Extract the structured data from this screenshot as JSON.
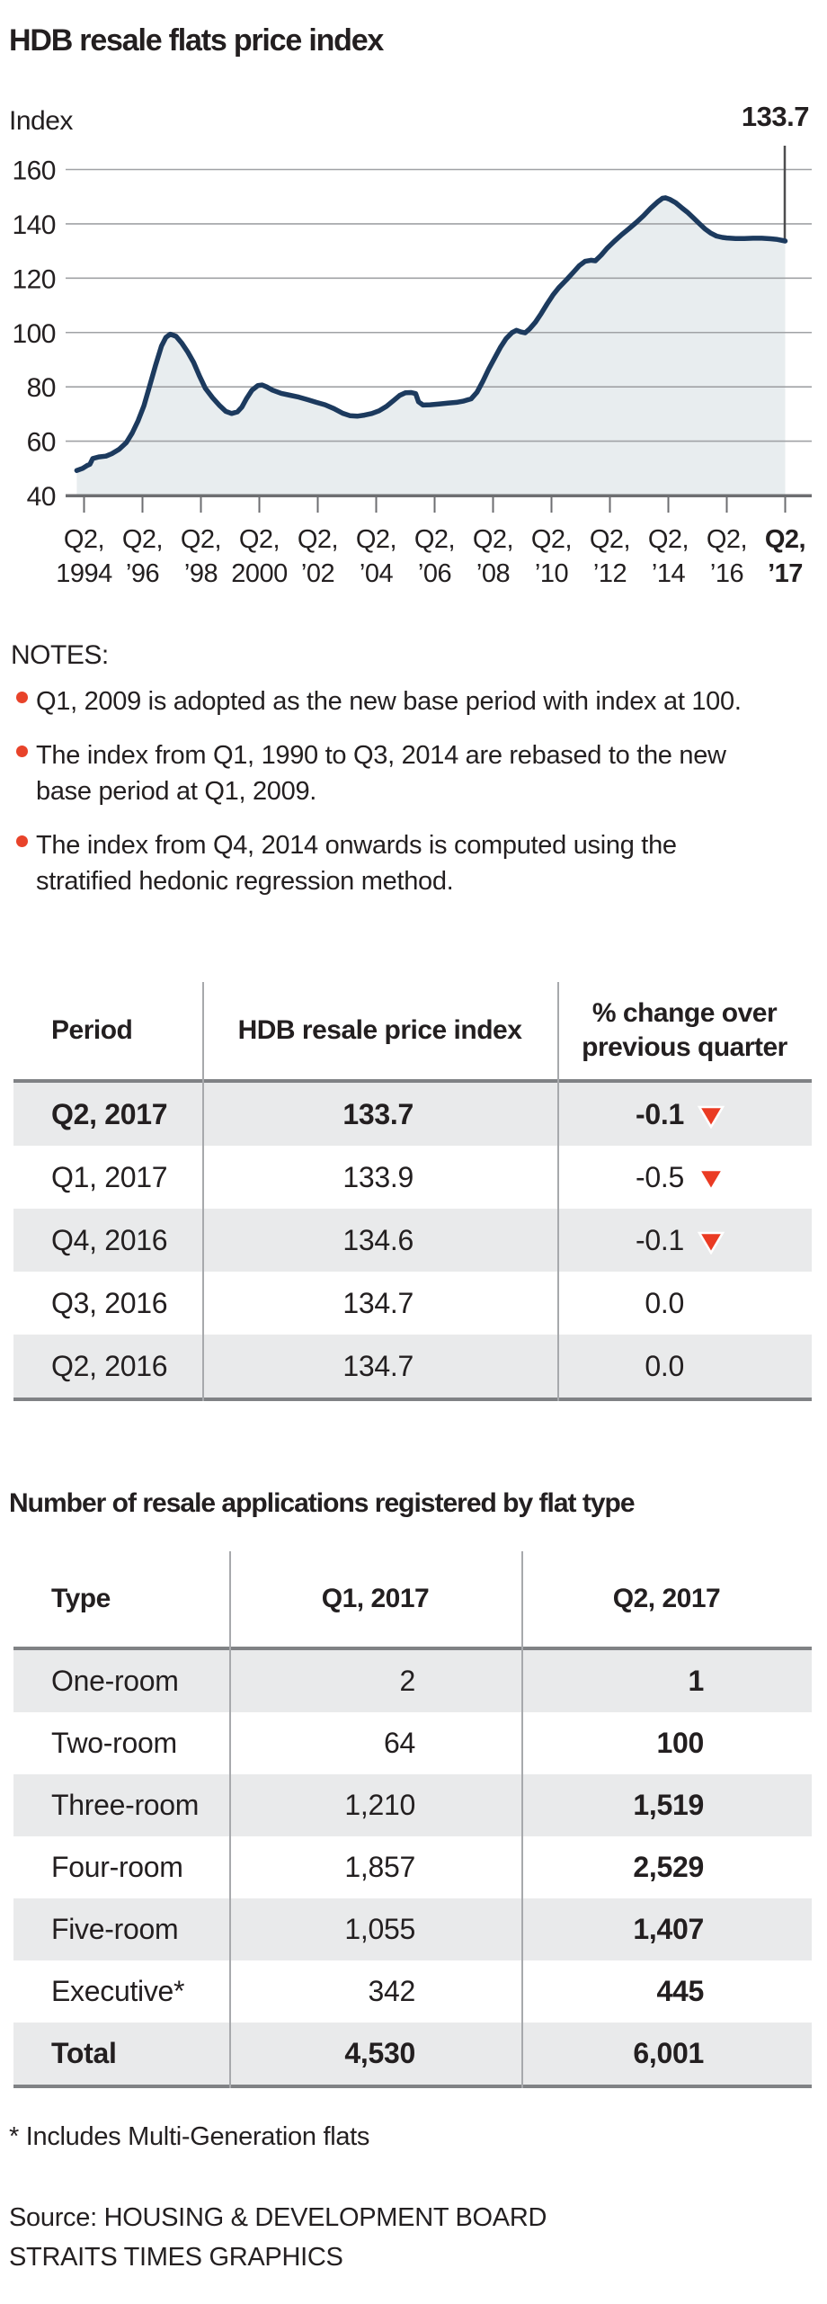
{
  "title": "HDB resale flats price index",
  "chart": {
    "axis_label": "Index",
    "end_annotation": "133.7"
  },
  "chart_data": {
    "type": "area",
    "title": "HDB resale flats price index",
    "ylabel": "Index",
    "ylim": [
      40,
      160
    ],
    "grid": true,
    "y_ticks": [
      160,
      140,
      120,
      100,
      80,
      60,
      40
    ],
    "x_tick_labels": [
      {
        "q": "Q2,",
        "year": "1994",
        "bold": false
      },
      {
        "q": "Q2,",
        "year": "’96",
        "bold": false
      },
      {
        "q": "Q2,",
        "year": "’98",
        "bold": false
      },
      {
        "q": "Q2,",
        "year": "2000",
        "bold": false
      },
      {
        "q": "Q2,",
        "year": "’02",
        "bold": false
      },
      {
        "q": "Q2,",
        "year": "’04",
        "bold": false
      },
      {
        "q": "Q2,",
        "year": "’06",
        "bold": false
      },
      {
        "q": "Q2,",
        "year": "’08",
        "bold": false
      },
      {
        "q": "Q2,",
        "year": "’10",
        "bold": false
      },
      {
        "q": "Q2,",
        "year": "’12",
        "bold": false
      },
      {
        "q": "Q2,",
        "year": "’14",
        "bold": false
      },
      {
        "q": "Q2,",
        "year": "’16",
        "bold": false
      },
      {
        "q": "Q2,",
        "year": "’17",
        "bold": true
      }
    ],
    "end_annotation": "133.7",
    "series": [
      {
        "name": "HDB resale price index",
        "points": [
          [
            1994.0,
            49.2
          ],
          [
            1994.2,
            50.0
          ],
          [
            1994.35,
            51.0
          ],
          [
            1994.45,
            51.5
          ],
          [
            1994.55,
            53.6
          ],
          [
            1994.75,
            54.2
          ],
          [
            1995.0,
            54.5
          ],
          [
            1995.2,
            55.4
          ],
          [
            1995.45,
            57.0
          ],
          [
            1995.7,
            59.5
          ],
          [
            1995.9,
            63.0
          ],
          [
            1996.1,
            67.5
          ],
          [
            1996.3,
            73.0
          ],
          [
            1996.5,
            80.5
          ],
          [
            1996.7,
            88.0
          ],
          [
            1996.9,
            95.0
          ],
          [
            1997.05,
            98.2
          ],
          [
            1997.2,
            99.4
          ],
          [
            1997.4,
            98.6
          ],
          [
            1997.6,
            96.0
          ],
          [
            1997.8,
            92.8
          ],
          [
            1998.0,
            89.0
          ],
          [
            1998.2,
            84.0
          ],
          [
            1998.4,
            79.5
          ],
          [
            1998.65,
            76.0
          ],
          [
            1998.9,
            73.0
          ],
          [
            1999.1,
            71.0
          ],
          [
            1999.3,
            70.2
          ],
          [
            1999.5,
            70.8
          ],
          [
            1999.65,
            72.5
          ],
          [
            1999.8,
            75.5
          ],
          [
            2000.0,
            78.8
          ],
          [
            2000.2,
            80.5
          ],
          [
            2000.35,
            80.7
          ],
          [
            2000.5,
            80.0
          ],
          [
            2000.7,
            78.8
          ],
          [
            2001.0,
            77.6
          ],
          [
            2001.3,
            76.9
          ],
          [
            2001.6,
            76.2
          ],
          [
            2001.9,
            75.3
          ],
          [
            2002.2,
            74.3
          ],
          [
            2002.5,
            73.4
          ],
          [
            2002.8,
            72.0
          ],
          [
            2003.1,
            70.3
          ],
          [
            2003.35,
            69.4
          ],
          [
            2003.6,
            69.2
          ],
          [
            2003.85,
            69.6
          ],
          [
            2004.1,
            70.2
          ],
          [
            2004.35,
            71.2
          ],
          [
            2004.6,
            72.8
          ],
          [
            2004.85,
            75.0
          ],
          [
            2005.05,
            76.8
          ],
          [
            2005.25,
            77.8
          ],
          [
            2005.45,
            77.9
          ],
          [
            2005.6,
            77.5
          ],
          [
            2005.7,
            74.5
          ],
          [
            2005.85,
            73.3
          ],
          [
            2006.1,
            73.4
          ],
          [
            2006.4,
            73.7
          ],
          [
            2006.7,
            74.0
          ],
          [
            2007.0,
            74.3
          ],
          [
            2007.25,
            74.8
          ],
          [
            2007.5,
            75.6
          ],
          [
            2007.7,
            78.0
          ],
          [
            2007.9,
            82.0
          ],
          [
            2008.1,
            86.5
          ],
          [
            2008.3,
            90.5
          ],
          [
            2008.5,
            94.5
          ],
          [
            2008.7,
            97.8
          ],
          [
            2008.9,
            100.0
          ],
          [
            2009.05,
            100.8
          ],
          [
            2009.2,
            100.2
          ],
          [
            2009.35,
            99.9
          ],
          [
            2009.5,
            101.3
          ],
          [
            2009.7,
            103.8
          ],
          [
            2009.9,
            107.0
          ],
          [
            2010.1,
            110.5
          ],
          [
            2010.3,
            113.8
          ],
          [
            2010.5,
            116.5
          ],
          [
            2010.75,
            119.3
          ],
          [
            2011.0,
            122.2
          ],
          [
            2011.2,
            124.6
          ],
          [
            2011.4,
            126.2
          ],
          [
            2011.6,
            126.6
          ],
          [
            2011.75,
            126.4
          ],
          [
            2011.95,
            128.5
          ],
          [
            2012.15,
            131.0
          ],
          [
            2012.4,
            133.6
          ],
          [
            2012.65,
            136.0
          ],
          [
            2012.9,
            138.2
          ],
          [
            2013.15,
            140.5
          ],
          [
            2013.4,
            143.0
          ],
          [
            2013.65,
            145.8
          ],
          [
            2013.9,
            148.2
          ],
          [
            2014.05,
            149.4
          ],
          [
            2014.15,
            149.6
          ],
          [
            2014.3,
            149.0
          ],
          [
            2014.5,
            147.8
          ],
          [
            2014.7,
            146.0
          ],
          [
            2014.9,
            144.3
          ],
          [
            2015.1,
            142.3
          ],
          [
            2015.3,
            140.2
          ],
          [
            2015.5,
            138.2
          ],
          [
            2015.7,
            136.6
          ],
          [
            2015.9,
            135.5
          ],
          [
            2016.1,
            135.0
          ],
          [
            2016.25,
            134.8
          ],
          [
            2016.4,
            134.6
          ],
          [
            2016.55,
            134.6
          ],
          [
            2016.7,
            134.7
          ],
          [
            2016.85,
            134.7
          ],
          [
            2017.0,
            134.5
          ],
          [
            2017.1,
            134.3
          ],
          [
            2017.25,
            133.7
          ]
        ]
      }
    ]
  },
  "notes": {
    "heading": "NOTES:",
    "items": [
      {
        "lines": [
          "Q1, 2009 is adopted as the new base period with index at 100."
        ]
      },
      {
        "lines": [
          "The index from Q1, 1990 to Q3, 2014 are rebased to the new",
          "base period at Q1, 2009."
        ]
      },
      {
        "lines": [
          "The index from Q4, 2014 onwards is computed using the",
          "stratified hedonic regression method."
        ]
      }
    ]
  },
  "price_table": {
    "headers": {
      "col1": "Period",
      "col2": "HDB resale price index",
      "col3_line1": "% change over",
      "col3_line2": "previous quarter"
    },
    "rows": [
      {
        "period": "Q2, 2017",
        "index": "133.7",
        "change": "-0.1",
        "direction": "down",
        "bold": true,
        "shaded": true
      },
      {
        "period": "Q1, 2017",
        "index": "133.9",
        "change": "-0.5",
        "direction": "down",
        "bold": false,
        "shaded": false
      },
      {
        "period": "Q4, 2016",
        "index": "134.6",
        "change": "-0.1",
        "direction": "down",
        "bold": false,
        "shaded": true
      },
      {
        "period": "Q3, 2016",
        "index": "134.7",
        "change": "0.0",
        "direction": "none",
        "bold": false,
        "shaded": false
      },
      {
        "period": "Q2, 2016",
        "index": "134.7",
        "change": "0.0",
        "direction": "none",
        "bold": false,
        "shaded": true
      }
    ]
  },
  "applications_table": {
    "title": "Number of resale applications registered by flat type",
    "headers": {
      "col1": "Type",
      "col2": "Q1, 2017",
      "col3": "Q2, 2017"
    },
    "rows": [
      {
        "type": "One-room",
        "q1": "2",
        "q2": "1",
        "bold": false,
        "shaded": true
      },
      {
        "type": "Two-room",
        "q1": "64",
        "q2": "100",
        "bold": false,
        "shaded": false
      },
      {
        "type": "Three-room",
        "q1": "1,210",
        "q2": "1,519",
        "bold": false,
        "shaded": true
      },
      {
        "type": "Four-room",
        "q1": "1,857",
        "q2": "2,529",
        "bold": false,
        "shaded": false
      },
      {
        "type": "Five-room",
        "q1": "1,055",
        "q2": "1,407",
        "bold": false,
        "shaded": true
      },
      {
        "type": "Executive*",
        "q1": "342",
        "q2": "445",
        "bold": false,
        "shaded": false
      },
      {
        "type": "Total",
        "q1": "4,530",
        "q2": "6,001",
        "bold": true,
        "shaded": true
      }
    ]
  },
  "footnote": "* Includes Multi-Generation flats",
  "source_line1": "Source: HOUSING & DEVELOPMENT BOARD",
  "source_line2": "STRAITS TIMES GRAPHICS",
  "colors": {
    "text": "#231f20",
    "line_navy": "#1c3a5e",
    "area_fill": "#e8edef",
    "accent_red": "#e8432a",
    "triangle_red": "#ea3b23",
    "row_shade": "#e9eaeb",
    "gridline": "#a0a2a5",
    "axis_dark": "#6d6e71",
    "marker_line": "#4d4d4f",
    "table_border": "#808285"
  }
}
